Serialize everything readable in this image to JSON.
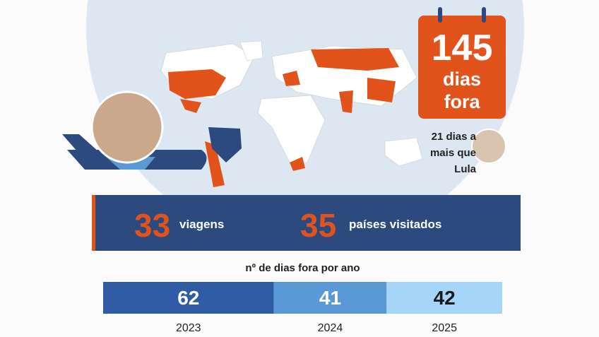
{
  "calendar": {
    "number": 145,
    "label": "dias fora"
  },
  "comparison": "21 dias a mais que Lula",
  "stats": [
    {
      "value": 33,
      "label": "viagens"
    },
    {
      "value": 35,
      "label": "países visitados"
    }
  ],
  "chart_data": {
    "type": "stacked-bar",
    "title": "nº de dias fora por ano",
    "categories": [
      "2023",
      "2024",
      "2025"
    ],
    "values": [
      62,
      41,
      42
    ],
    "colors": [
      "#2f5ca5",
      "#5b98d6",
      "#a6d6f7"
    ],
    "label_colors": [
      "#ffffff",
      "#ffffff",
      "#1a1a1a"
    ]
  }
}
